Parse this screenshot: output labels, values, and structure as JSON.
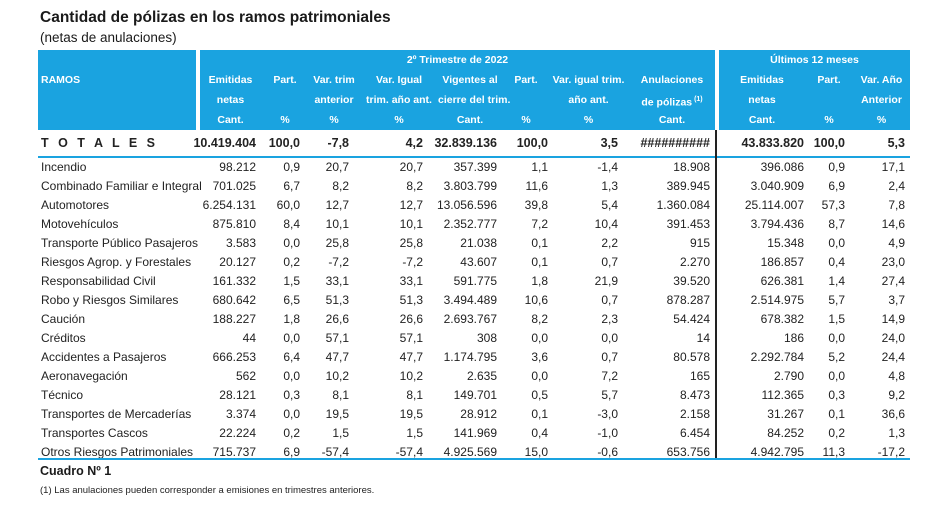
{
  "title": "Cantidad de pólizas en los ramos patrimoniales",
  "subtitle": "(netas de anulaciones)",
  "header": {
    "group_trim": "2º Trimestre de 2022",
    "group_12m": "Últimos 12 meses",
    "ramos": "RAMOS",
    "cols": [
      {
        "l1": "Emitidas",
        "l2": "netas",
        "l3": "Cant."
      },
      {
        "l1": "Part.",
        "l2": "",
        "l3": "%"
      },
      {
        "l1": "Var. trim",
        "l2": "anterior",
        "l3": "%"
      },
      {
        "l1": "Var. Igual",
        "l2": "trim. año ant.",
        "l3": "%"
      },
      {
        "l1": "Vigentes al",
        "l2": "cierre del trim.",
        "l3": "Cant."
      },
      {
        "l1": "Part.",
        "l2": "",
        "l3": "%"
      },
      {
        "l1": "Var. igual trim.",
        "l2": "año ant.",
        "l3": "%"
      },
      {
        "l1": "Anulaciones",
        "l2": "de pólizas",
        "l2_sup": "(1)",
        "l3": "Cant."
      },
      {
        "l1": "Emitidas",
        "l2": "netas",
        "l3": "Cant."
      },
      {
        "l1": "Part.",
        "l2": "",
        "l3": "%"
      },
      {
        "l1": "Var. Año",
        "l2": "Anterior",
        "l3": "%"
      }
    ]
  },
  "totals": {
    "name": "T O T A L E S",
    "values": [
      "10.419.404",
      "100,0",
      "-7,8",
      "4,2",
      "32.839.136",
      "100,0",
      "3,5",
      "##########",
      "43.833.820",
      "100,0",
      "5,3"
    ]
  },
  "rows": [
    {
      "name": "Incendio",
      "values": [
        "98.212",
        "0,9",
        "20,7",
        "20,7",
        "357.399",
        "1,1",
        "-1,4",
        "18.908",
        "396.086",
        "0,9",
        "17,1"
      ]
    },
    {
      "name": "Combinado Familiar e Integral",
      "values": [
        "701.025",
        "6,7",
        "8,2",
        "8,2",
        "3.803.799",
        "11,6",
        "1,3",
        "389.945",
        "3.040.909",
        "6,9",
        "2,4"
      ]
    },
    {
      "name": "Automotores",
      "values": [
        "6.254.131",
        "60,0",
        "12,7",
        "12,7",
        "13.056.596",
        "39,8",
        "5,4",
        "1.360.084",
        "25.114.007",
        "57,3",
        "7,8"
      ]
    },
    {
      "name": "Motovehículos",
      "values": [
        "875.810",
        "8,4",
        "10,1",
        "10,1",
        "2.352.777",
        "7,2",
        "10,4",
        "391.453",
        "3.794.436",
        "8,7",
        "14,6"
      ]
    },
    {
      "name": "Transporte Público Pasajeros",
      "values": [
        "3.583",
        "0,0",
        "25,8",
        "25,8",
        "21.038",
        "0,1",
        "2,2",
        "915",
        "15.348",
        "0,0",
        "4,9"
      ]
    },
    {
      "name": "Riesgos Agrop. y Forestales",
      "values": [
        "20.127",
        "0,2",
        "-7,2",
        "-7,2",
        "43.607",
        "0,1",
        "0,7",
        "2.270",
        "186.857",
        "0,4",
        "23,0"
      ]
    },
    {
      "name": "Responsabilidad Civil",
      "values": [
        "161.332",
        "1,5",
        "33,1",
        "33,1",
        "591.775",
        "1,8",
        "21,9",
        "39.520",
        "626.381",
        "1,4",
        "27,4"
      ]
    },
    {
      "name": "Robo y Riesgos Similares",
      "values": [
        "680.642",
        "6,5",
        "51,3",
        "51,3",
        "3.494.489",
        "10,6",
        "0,7",
        "878.287",
        "2.514.975",
        "5,7",
        "3,7"
      ]
    },
    {
      "name": "Caución",
      "values": [
        "188.227",
        "1,8",
        "26,6",
        "26,6",
        "2.693.767",
        "8,2",
        "2,3",
        "54.424",
        "678.382",
        "1,5",
        "14,9"
      ]
    },
    {
      "name": "Créditos",
      "values": [
        "44",
        "0,0",
        "57,1",
        "57,1",
        "308",
        "0,0",
        "0,0",
        "14",
        "186",
        "0,0",
        "24,0"
      ]
    },
    {
      "name": "Accidentes a Pasajeros",
      "values": [
        "666.253",
        "6,4",
        "47,7",
        "47,7",
        "1.174.795",
        "3,6",
        "0,7",
        "80.578",
        "2.292.784",
        "5,2",
        "24,4"
      ]
    },
    {
      "name": "Aeronavegación",
      "values": [
        "562",
        "0,0",
        "10,2",
        "10,2",
        "2.635",
        "0,0",
        "7,2",
        "165",
        "2.790",
        "0,0",
        "4,8"
      ]
    },
    {
      "name": "Técnico",
      "values": [
        "28.121",
        "0,3",
        "8,1",
        "8,1",
        "149.701",
        "0,5",
        "5,7",
        "8.473",
        "112.365",
        "0,3",
        "9,2"
      ]
    },
    {
      "name": "Transportes de Mercaderías",
      "values": [
        "3.374",
        "0,0",
        "19,5",
        "19,5",
        "28.912",
        "0,1",
        "-3,0",
        "2.158",
        "31.267",
        "0,1",
        "36,6"
      ]
    },
    {
      "name": "Transportes Cascos",
      "values": [
        "22.224",
        "0,2",
        "1,5",
        "1,5",
        "141.969",
        "0,4",
        "-1,0",
        "6.454",
        "84.252",
        "0,2",
        "1,3"
      ]
    },
    {
      "name": "Otros Riesgos Patrimoniales",
      "values": [
        "715.737",
        "6,9",
        "-57,4",
        "-57,4",
        "4.925.569",
        "15,0",
        "-0,6",
        "653.756",
        "4.942.795",
        "11,3",
        "-17,2"
      ]
    }
  ],
  "caption": "Cuadro Nº 1",
  "note": "(1) Las anulaciones pueden corresponder a emisiones en trimestres anteriores."
}
